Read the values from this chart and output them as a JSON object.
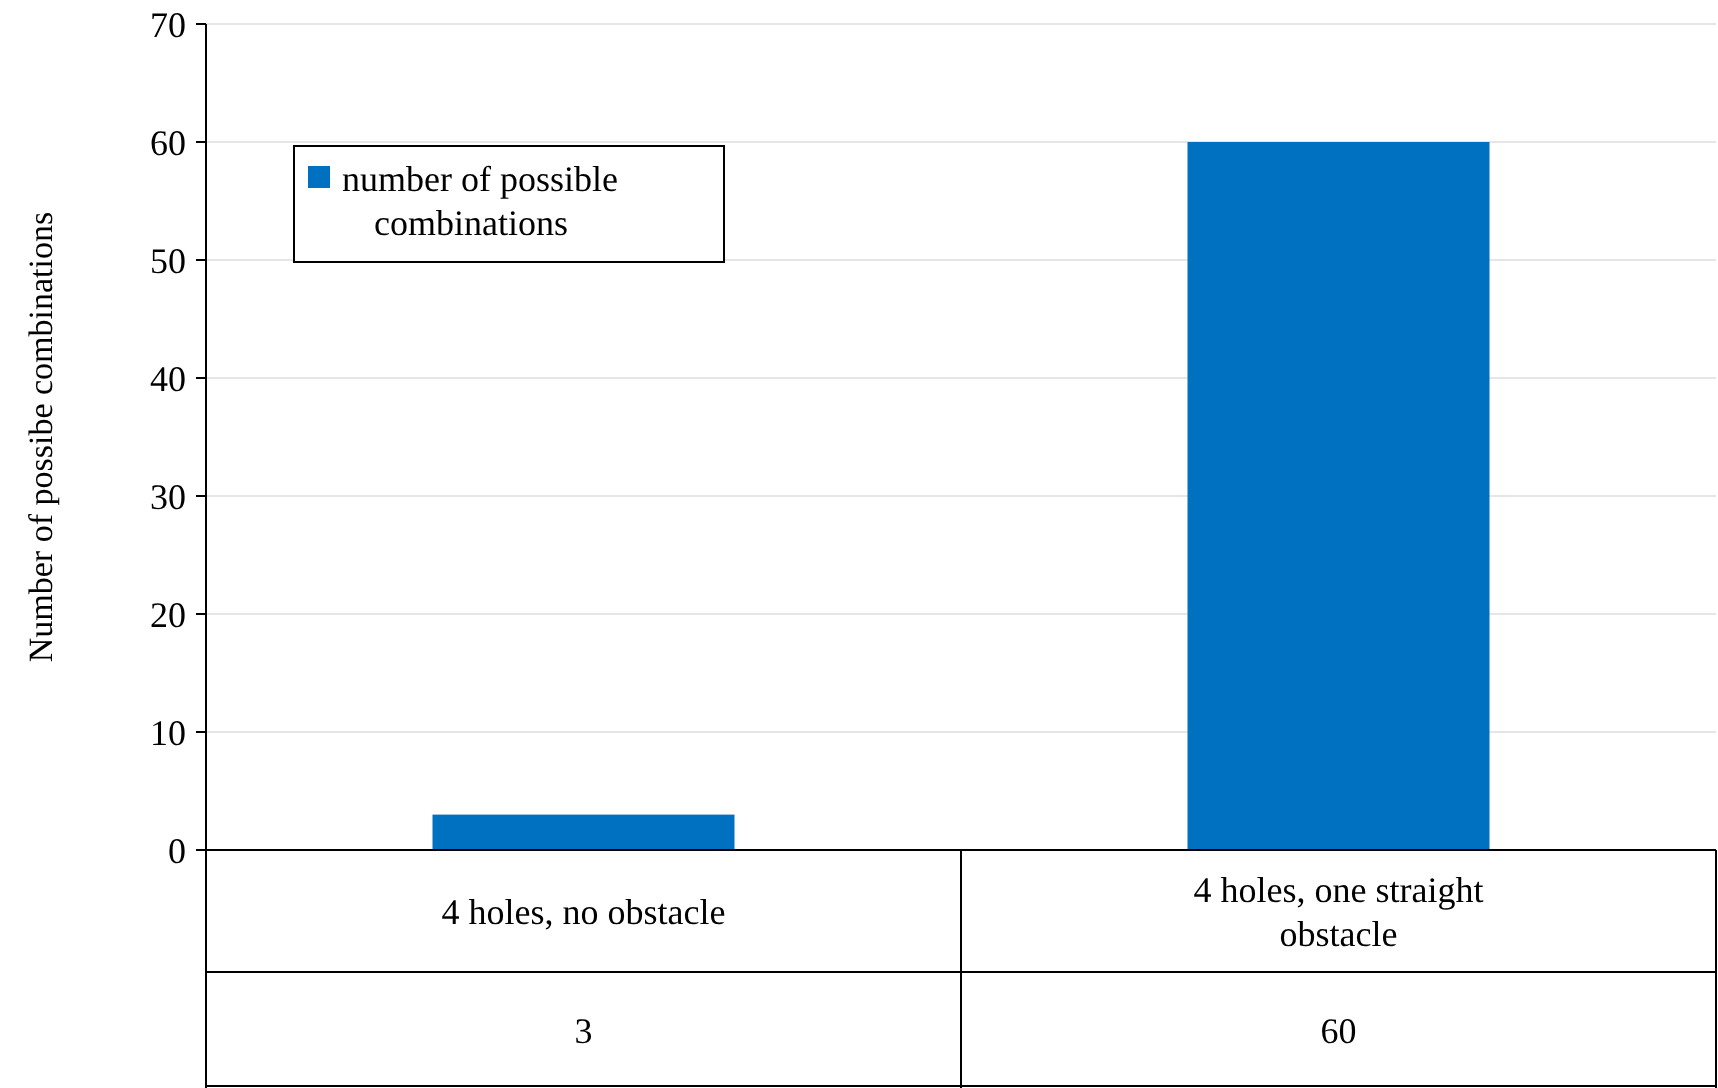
{
  "chart_data": {
    "type": "bar",
    "ylabel": "Number of possibe combinations",
    "categories": [
      "4 holes, no obstacle",
      "4 holes, one straight obstacle"
    ],
    "series": [
      {
        "name": "number of possible combinations",
        "color": "#0070c0",
        "values": [
          3,
          60
        ]
      }
    ],
    "ylim": [
      0,
      70
    ],
    "yticks": [
      0,
      10,
      20,
      30,
      40,
      50,
      60,
      70
    ],
    "grid": "y",
    "legend": "top left",
    "data_labels": true
  }
}
